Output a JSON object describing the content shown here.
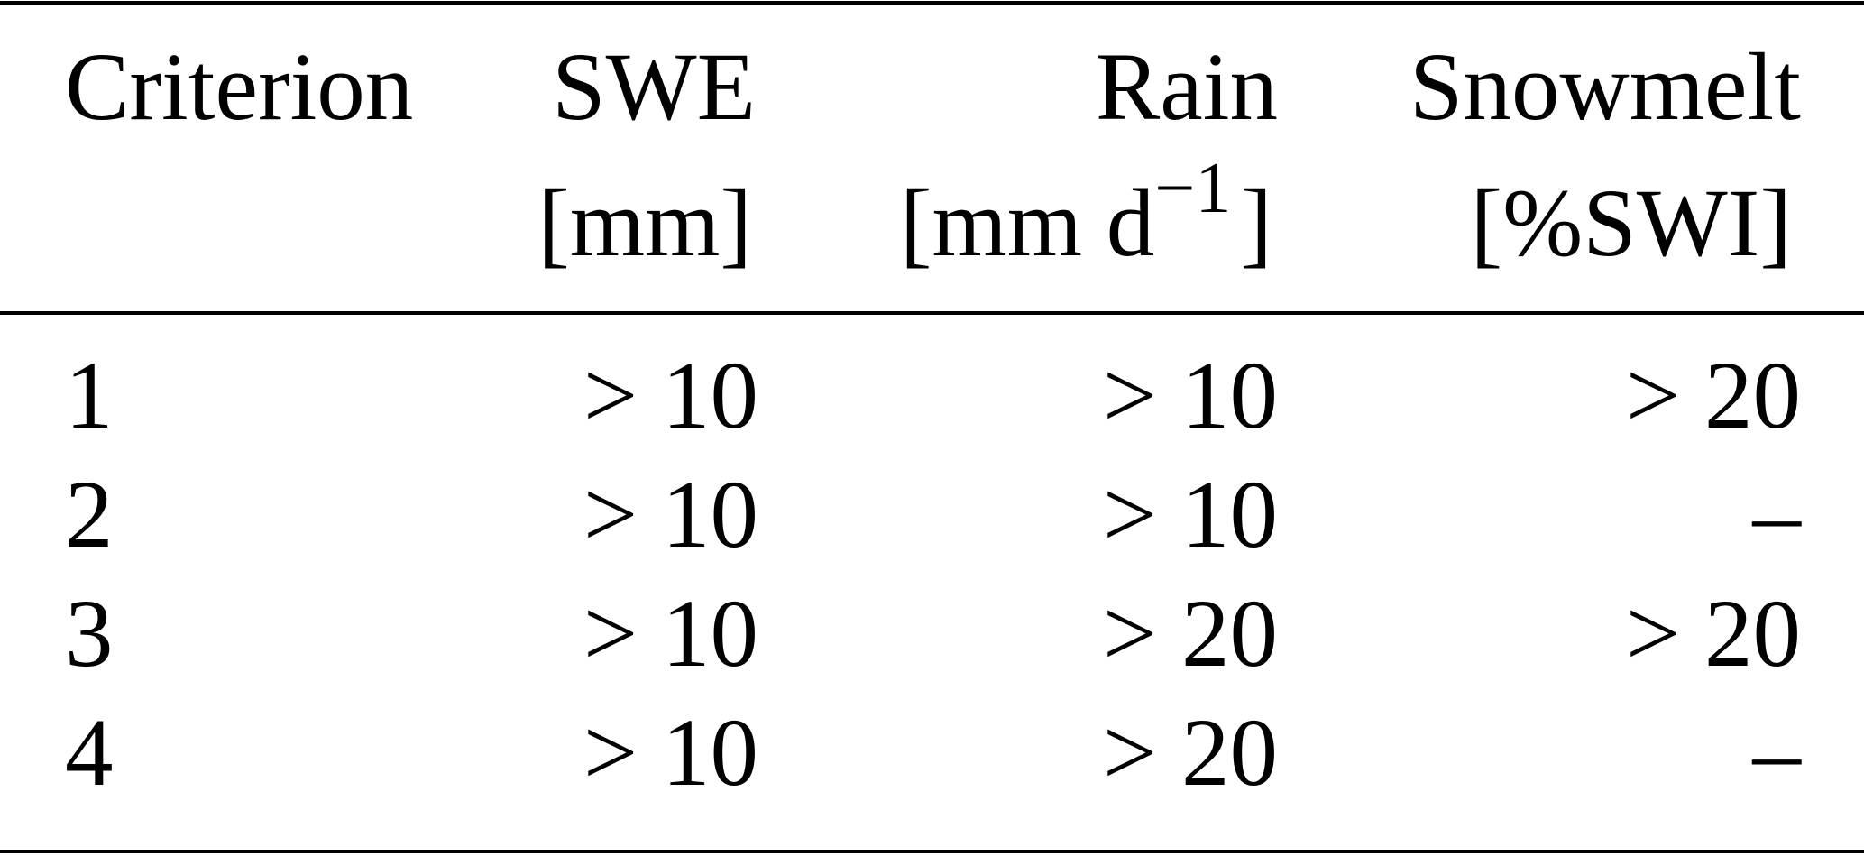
{
  "table": {
    "header": [
      {
        "name": "Criterion"
      },
      {
        "name": "SWE",
        "unit": "[mm]"
      },
      {
        "name": "Rain",
        "unit": "[mm d",
        "unit_sup": "−1",
        "unit_end": "]"
      },
      {
        "name": "Snowmelt",
        "unit": "[%SWI]"
      }
    ],
    "rows": [
      [
        "1",
        "> 10",
        "> 10",
        "> 20"
      ],
      [
        "2",
        "> 10",
        "> 10",
        "–"
      ],
      [
        "3",
        "> 10",
        "> 20",
        "> 20"
      ],
      [
        "4",
        "> 10",
        "> 20",
        "–"
      ]
    ]
  }
}
